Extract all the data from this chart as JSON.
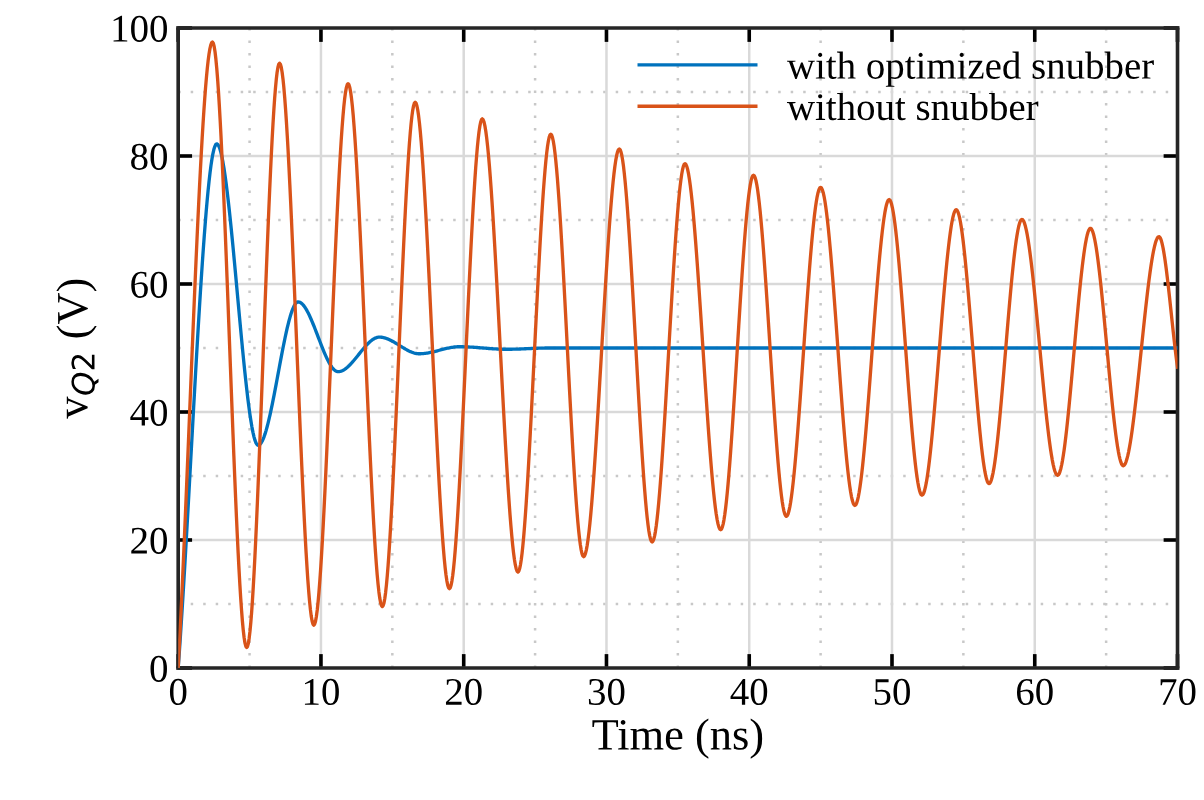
{
  "chart_data": {
    "type": "line",
    "xlabel": "Time (ns)",
    "ylabel": "v$_{Q2}$ (V)",
    "xlim": [
      0,
      70
    ],
    "xticks": [
      0,
      10,
      20,
      30,
      40,
      50,
      60,
      70
    ],
    "ylim": [
      0,
      100
    ],
    "yticks": [
      0,
      20,
      40,
      60,
      80,
      100
    ],
    "grid": true,
    "legend": "top right",
    "line_style": "solid",
    "marker": "none",
    "series": [
      {
        "name": "with optimized snubber",
        "color": "#0072bd",
        "x": [
          0,
          2.7,
          5.6,
          8.4,
          11.2,
          14.1,
          16.9,
          19.7,
          23,
          26,
          70
        ],
        "values": [
          0,
          81.9,
          34.8,
          57.2,
          46.3,
          51.7,
          49.1,
          50.2,
          49.8,
          50,
          50
        ]
      },
      {
        "name": "without snubber",
        "color": "#d95319",
        "x": [
          0,
          2.4,
          4.8,
          7.1,
          9.5,
          11.9,
          14.3,
          16.6,
          19.0,
          21.3,
          23.8,
          26.1,
          28.4,
          30.9,
          33.2,
          35.5,
          38.0,
          40.3,
          42.6,
          45.0,
          47.4,
          49.8,
          52.1,
          54.5,
          56.8,
          59.1,
          61.6,
          63.9,
          66.2,
          68.7,
          70
        ],
        "values": [
          0,
          97.8,
          3.2,
          94.5,
          6.7,
          91.3,
          9.6,
          88.4,
          12.4,
          85.8,
          15.0,
          83.4,
          17.4,
          81.1,
          19.7,
          78.8,
          21.6,
          77.0,
          23.7,
          75.1,
          25.4,
          73.2,
          27.0,
          71.6,
          28.8,
          70.1,
          30.1,
          68.7,
          31.6,
          67.4,
          47
        ]
      }
    ]
  }
}
